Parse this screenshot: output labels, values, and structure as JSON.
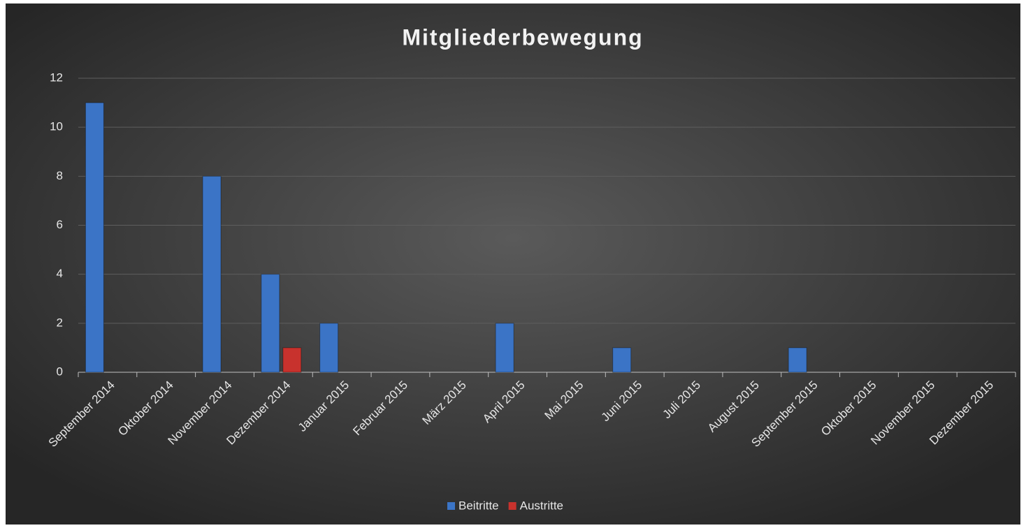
{
  "chart_data": {
    "type": "bar",
    "title": "Mitgliederbewegung",
    "categories": [
      "September 2014",
      "Oktober 2014",
      "November 2014",
      "Dezember 2014",
      "Januar 2015",
      "Februar 2015",
      "März 2015",
      "April 2015",
      "Mai 2015",
      "Juni 2015",
      "Juli 2015",
      "August 2015",
      "September 2015",
      "Oktober 2015",
      "November 2015",
      "Dezember 2015"
    ],
    "series": [
      {
        "name": "Beitritte",
        "color": "#3b74c6",
        "values": [
          11,
          0,
          8,
          4,
          2,
          0,
          0,
          2,
          0,
          1,
          0,
          0,
          1,
          0,
          0,
          0
        ]
      },
      {
        "name": "Austritte",
        "color": "#c8322d",
        "values": [
          0,
          0,
          0,
          1,
          0,
          0,
          0,
          0,
          0,
          0,
          0,
          0,
          0,
          0,
          0,
          0
        ]
      }
    ],
    "ylim": [
      0,
      12
    ],
    "yticks": [
      0,
      2,
      4,
      6,
      8,
      10,
      12
    ],
    "grid": true,
    "legend": "bottom"
  }
}
